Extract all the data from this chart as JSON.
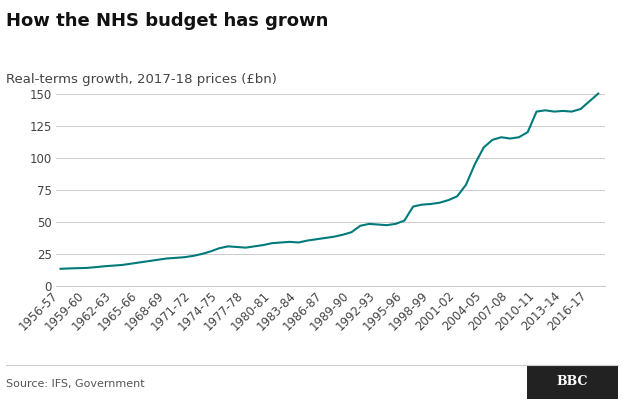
{
  "title": "How the NHS budget has grown",
  "subtitle": "Real-terms growth, 2017-18 prices (£bn)",
  "source": "Source: IFS, Government",
  "line_color": "#007a7a",
  "background_color": "#ffffff",
  "grid_color": "#cccccc",
  "x_labels": [
    "1956-57",
    "1959-60",
    "1962-63",
    "1965-66",
    "1968-69",
    "1971-72",
    "1974-75",
    "1977-78",
    "1980-81",
    "1983-84",
    "1986-87",
    "1989-90",
    "1992-93",
    "1995-96",
    "1998-99",
    "2001-02",
    "2004-05",
    "2007-08",
    "2010-11",
    "2013-14",
    "2016-17"
  ],
  "x_tick_positions": [
    1956,
    1959,
    1962,
    1965,
    1968,
    1971,
    1974,
    1977,
    1980,
    1983,
    1986,
    1989,
    1992,
    1995,
    1998,
    2001,
    2004,
    2007,
    2010,
    2013,
    2016
  ],
  "years": [
    1956,
    1957,
    1958,
    1959,
    1960,
    1961,
    1962,
    1963,
    1964,
    1965,
    1966,
    1967,
    1968,
    1969,
    1970,
    1971,
    1972,
    1973,
    1974,
    1975,
    1976,
    1977,
    1978,
    1979,
    1980,
    1981,
    1982,
    1983,
    1984,
    1985,
    1986,
    1987,
    1988,
    1989,
    1990,
    1991,
    1992,
    1993,
    1994,
    1995,
    1996,
    1997,
    1998,
    1999,
    2000,
    2001,
    2002,
    2003,
    2004,
    2005,
    2006,
    2007,
    2008,
    2009,
    2010,
    2011,
    2012,
    2013,
    2014,
    2015,
    2016,
    2017
  ],
  "values": [
    13.5,
    13.8,
    14.0,
    14.2,
    14.8,
    15.5,
    16.0,
    16.5,
    17.5,
    18.5,
    19.5,
    20.5,
    21.5,
    22.0,
    22.5,
    23.5,
    25.0,
    27.0,
    29.5,
    31.0,
    30.5,
    30.0,
    31.0,
    32.0,
    33.5,
    34.0,
    34.5,
    34.0,
    35.5,
    36.5,
    37.5,
    38.5,
    40.0,
    42.0,
    47.0,
    48.5,
    48.0,
    47.5,
    48.5,
    51.0,
    62.0,
    63.5,
    64.0,
    65.0,
    67.0,
    70.0,
    79.0,
    95.0,
    108.0,
    114.0,
    116.0,
    115.0,
    116.0,
    120.0,
    136.0,
    137.0,
    136.0,
    136.5,
    136.0,
    138.0,
    144.0,
    150.0
  ],
  "ylim": [
    0,
    157
  ],
  "yticks": [
    0,
    25,
    50,
    75,
    100,
    125,
    150
  ],
  "xlim": [
    1955.5,
    2017.8
  ],
  "line_width": 1.5,
  "title_fontsize": 13,
  "subtitle_fontsize": 9.5,
  "tick_fontsize": 8.5,
  "source_fontsize": 8,
  "bbc_color": "#222222"
}
